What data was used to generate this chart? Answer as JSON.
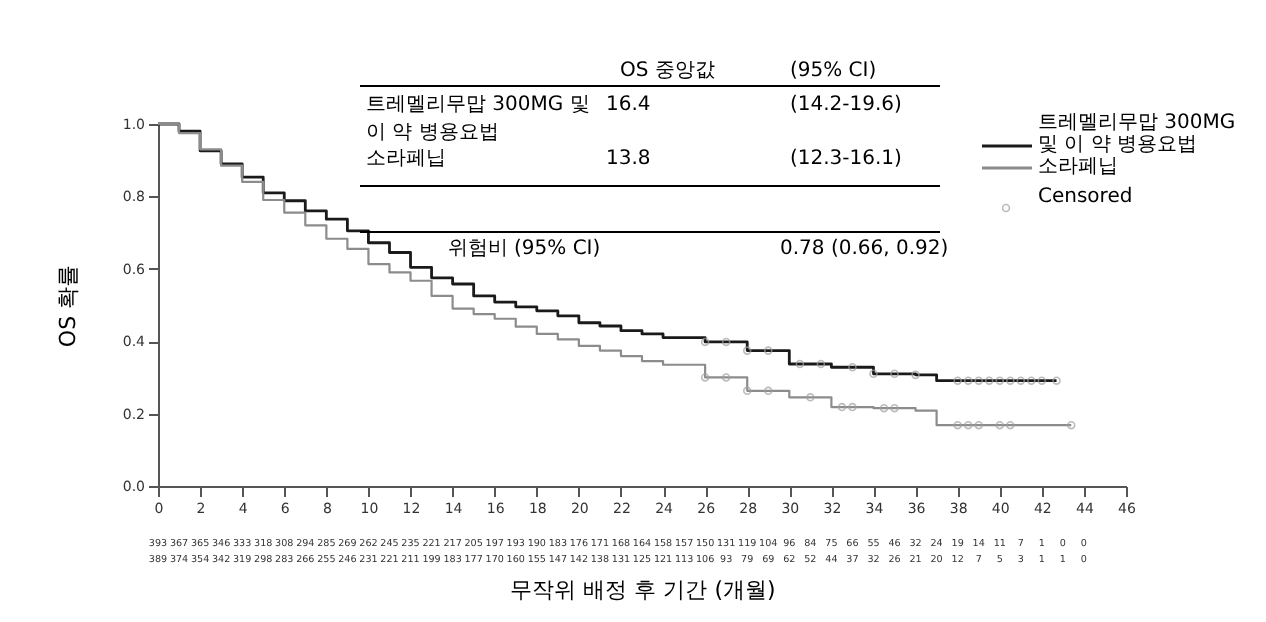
{
  "chart_data": {
    "type": "step",
    "xlabel": "무작위 배정 후 기간 (개월)",
    "ylabel": "OS 확률",
    "xlim": [
      0,
      46
    ],
    "xticks": [
      0,
      2,
      4,
      6,
      8,
      10,
      12,
      14,
      16,
      18,
      20,
      22,
      24,
      26,
      28,
      30,
      32,
      34,
      36,
      38,
      40,
      42,
      44,
      46
    ],
    "ylim": [
      0,
      1
    ],
    "yticks": [
      {
        "value": 0,
        "label": "0.0"
      },
      0.2,
      0.4,
      0.6,
      0.8,
      {
        "value": 1,
        "label": "1.0"
      }
    ],
    "grid": false,
    "legend": "right",
    "series": [
      {
        "name": "트레멜리무맙 300MG 및 이 약 병용요법",
        "color": "#1a1a1a",
        "line_style": "solid",
        "x": [
          0,
          1,
          2,
          3,
          4,
          5,
          6,
          7,
          8,
          9,
          10,
          11,
          12,
          13,
          14,
          15,
          16,
          17,
          18,
          19,
          20,
          21,
          22,
          23,
          24,
          26,
          28,
          30,
          32,
          34,
          36,
          37,
          42.7
        ],
        "values": [
          1.0,
          0.98,
          0.926,
          0.89,
          0.853,
          0.81,
          0.788,
          0.76,
          0.737,
          0.705,
          0.672,
          0.645,
          0.604,
          0.575,
          0.558,
          0.525,
          0.508,
          0.495,
          0.484,
          0.47,
          0.451,
          0.442,
          0.429,
          0.42,
          0.41,
          0.398,
          0.374,
          0.337,
          0.328,
          0.31,
          0.307,
          0.291,
          0.291
        ]
      },
      {
        "name": "소라페닙",
        "color": "#8c8c8c",
        "line_style": "solid",
        "x": [
          0,
          1,
          2,
          3,
          4,
          5,
          6,
          7,
          8,
          9,
          10,
          11,
          12,
          13,
          14,
          15,
          16,
          17,
          18,
          19,
          20,
          21,
          22,
          23,
          24,
          26,
          28,
          30,
          32,
          34,
          36,
          37,
          43.4
        ],
        "values": [
          1.0,
          0.975,
          0.93,
          0.885,
          0.84,
          0.79,
          0.755,
          0.72,
          0.683,
          0.655,
          0.613,
          0.59,
          0.567,
          0.525,
          0.49,
          0.475,
          0.462,
          0.44,
          0.42,
          0.405,
          0.387,
          0.374,
          0.359,
          0.345,
          0.335,
          0.3,
          0.263,
          0.245,
          0.218,
          0.215,
          0.208,
          0.168,
          0.168
        ]
      },
      {
        "name": "Censored",
        "type": "scatter",
        "marker": "circle",
        "color": "#a0a0a0",
        "x": [
          26,
          27,
          28,
          29,
          30.5,
          31.5,
          33,
          34,
          35,
          36,
          38,
          38.5,
          39,
          39.5,
          40,
          40.5,
          41,
          41.5,
          42,
          42.7,
          26,
          27,
          28,
          29,
          31,
          32.5,
          33,
          34.5,
          35,
          38,
          38.5,
          39,
          40,
          40.5,
          43.4
        ],
        "values": [
          0.398,
          0.398,
          0.374,
          0.374,
          0.337,
          0.337,
          0.328,
          0.31,
          0.31,
          0.307,
          0.291,
          0.291,
          0.291,
          0.291,
          0.291,
          0.291,
          0.291,
          0.291,
          0.291,
          0.291,
          0.3,
          0.3,
          0.263,
          0.263,
          0.245,
          0.218,
          0.218,
          0.215,
          0.215,
          0.168,
          0.168,
          0.168,
          0.168,
          0.168,
          0.168
        ]
      }
    ],
    "annotations": [
      "OS 중앙값",
      "(95% CI)",
      "트레멜리무맙 300MG 및",
      "이 약 병용요법",
      "16.4",
      "(14.2-19.6)",
      "소라페닙",
      "13.8",
      "(12.3-16.1)",
      "위험비 (95% CI)",
      "0.78 (0.66, 0.92)",
      "393 367 365 346 333 318 308 294 285 269 262 245 235 221 217 205 197 193 190 183 176 171 168 164 158 157 150 131 119 104 96 84 75 66 55 46 32 24 19 14 11 7 1 0 0",
      "389 374 354 342 319 298 283 266 255 246 231 221 211 199 183 177 170 160 155 147 142 138 131 125 121 113 106 93 79 69 62 52 44 37 32 26 21 20 12 7 5 3 1 1 0"
    ]
  }
}
